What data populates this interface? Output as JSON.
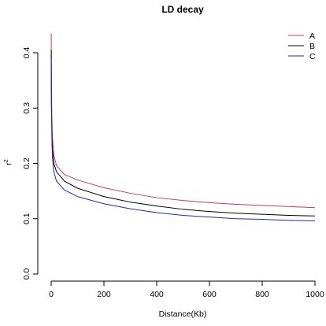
{
  "chart_data": {
    "type": "line",
    "title": "LD decay",
    "xlabel": "Distance(Kb)",
    "ylabel": "r",
    "ylabel_superscript": "2",
    "xlim": [
      0,
      1000
    ],
    "ylim": [
      0.0,
      0.4
    ],
    "x_ticks": [
      "0",
      "200",
      "400",
      "600",
      "800",
      "1000"
    ],
    "y_ticks": [
      "0.0",
      "0.1",
      "0.2",
      "0.3",
      "0.4"
    ],
    "grid": false,
    "legend_position": "top-right",
    "series": [
      {
        "name": "A",
        "color": "#CD3A5A",
        "x": [
          0.2,
          1,
          3,
          5,
          10,
          20,
          50,
          100,
          200,
          300,
          400,
          500,
          600,
          700,
          800,
          900,
          1000
        ],
        "y": [
          0.435,
          0.34,
          0.27,
          0.245,
          0.215,
          0.196,
          0.18,
          0.17,
          0.156,
          0.146,
          0.138,
          0.133,
          0.129,
          0.126,
          0.124,
          0.122,
          0.12
        ]
      },
      {
        "name": "B",
        "color": "#000000",
        "x": [
          0.2,
          1,
          3,
          5,
          10,
          20,
          50,
          100,
          200,
          300,
          400,
          500,
          600,
          700,
          800,
          900,
          1000
        ],
        "y": [
          0.405,
          0.31,
          0.25,
          0.225,
          0.2,
          0.185,
          0.168,
          0.155,
          0.14,
          0.13,
          0.123,
          0.117,
          0.113,
          0.11,
          0.108,
          0.106,
          0.105
        ]
      },
      {
        "name": "C",
        "color": "#2525B8",
        "x": [
          0.2,
          1,
          3,
          5,
          10,
          20,
          50,
          100,
          200,
          300,
          400,
          500,
          600,
          700,
          800,
          900,
          1000
        ],
        "y": [
          0.39,
          0.3,
          0.235,
          0.21,
          0.185,
          0.168,
          0.152,
          0.14,
          0.127,
          0.118,
          0.111,
          0.106,
          0.103,
          0.1,
          0.099,
          0.097,
          0.096
        ]
      }
    ]
  }
}
